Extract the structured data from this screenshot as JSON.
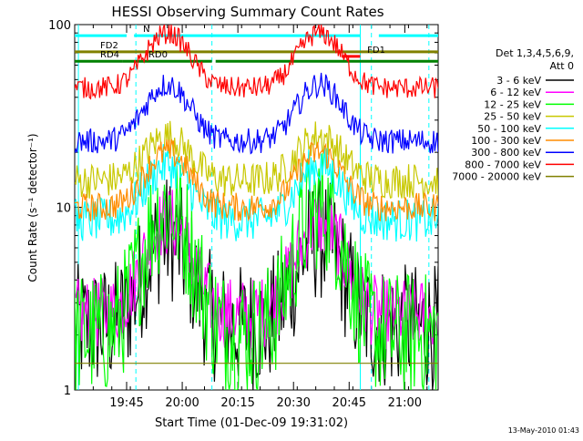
{
  "chart_data": {
    "type": "line",
    "title": "HESSI Observing Summary Count Rates",
    "xlabel": "Start Time (01-Dec-09 19:31:02)",
    "ylabel": "Count Rate (s⁻¹ detector⁻¹)",
    "y_scale": "log",
    "ylim": [
      1,
      100
    ],
    "xlim": [
      0,
      98
    ],
    "x_units": "minutes since 01-Dec-09 19:31:02",
    "x_ticks": [
      {
        "t": 14,
        "label": "19:45"
      },
      {
        "t": 29,
        "label": "20:00"
      },
      {
        "t": 44,
        "label": "20:15"
      },
      {
        "t": 59,
        "label": "20:30"
      },
      {
        "t": 74,
        "label": "20:45"
      },
      {
        "t": 89,
        "label": "21:00"
      }
    ],
    "y_ticks": [
      {
        "v": 1,
        "label": "1"
      },
      {
        "v": 10,
        "label": "10"
      },
      {
        "v": 100,
        "label": "100"
      }
    ],
    "legend": {
      "position": "right",
      "header": [
        "Det 1,3,4,5,6,9,",
        "Att 0"
      ]
    },
    "series": [
      {
        "name": "3 - 6 keV",
        "color": "#000000",
        "base": 2.2,
        "peak": 3.1,
        "noise": 0.35,
        "floor": 1.0
      },
      {
        "name": "6 - 12 keV",
        "color": "#ff00ff",
        "base": 2.6,
        "peak": 3.2,
        "noise": 0.2,
        "floor": 1.0
      },
      {
        "name": "12 - 25 keV",
        "color": "#00ff00",
        "base": 2.0,
        "peak": 5.0,
        "noise": 0.35,
        "floor": 1.0
      },
      {
        "name": "25 - 50 keV",
        "color": "#c8c800",
        "base": 14,
        "peak": 1.75,
        "noise": 0.1
      },
      {
        "name": "50 - 100 keV",
        "color": "#00ffff",
        "base": 8.5,
        "peak": 2.0,
        "noise": 0.12
      },
      {
        "name": "100 - 300 keV",
        "color": "#ff8c00",
        "base": 10,
        "peak": 2.0,
        "noise": 0.08
      },
      {
        "name": "300 - 800 keV",
        "color": "#0000ff",
        "base": 23,
        "peak": 2.05,
        "noise": 0.07
      },
      {
        "name": "800 - 7000 keV",
        "color": "#ff0000",
        "base": 45,
        "peak": 2.0,
        "noise": 0.06
      },
      {
        "name": "7000 - 20000 keV",
        "color": "#808000",
        "base": 1.4,
        "peak": 1.0,
        "noise": 0.0,
        "floor": 1.0
      }
    ],
    "flag_bars": [
      {
        "label": "N",
        "color": "#00ffff",
        "segments": [
          [
            0,
            14
          ],
          [
            16,
            77
          ],
          [
            82,
            98
          ]
        ],
        "level": 87
      },
      {
        "label": "FD2",
        "color": "#808000",
        "segments": [
          [
            0,
            98
          ]
        ],
        "level": 71
      },
      {
        "label": "RD0",
        "color": "#008000",
        "segments": [
          [
            13,
            37
          ],
          [
            38,
            98
          ]
        ],
        "level": 63
      },
      {
        "label": "RD4",
        "color": "#008000",
        "segments": [
          [
            0,
            13
          ]
        ],
        "level": 63
      },
      {
        "label": "FD1",
        "color": "#ff0000",
        "segments": [
          [
            72,
            77
          ]
        ],
        "level": 67
      }
    ],
    "day_night_markers": [
      {
        "t": 1,
        "style": "solid"
      },
      {
        "t": 16.5,
        "style": "dashed"
      },
      {
        "t": 37,
        "style": "dashed"
      },
      {
        "t": 77,
        "style": "solid"
      },
      {
        "t": 80,
        "style": "dashed"
      },
      {
        "t": 95.5,
        "style": "dashed"
      }
    ],
    "orbit_peaks_minutes": [
      25,
      66
    ]
  },
  "footer": {
    "date_stamp": "13-May-2010 01:43"
  }
}
